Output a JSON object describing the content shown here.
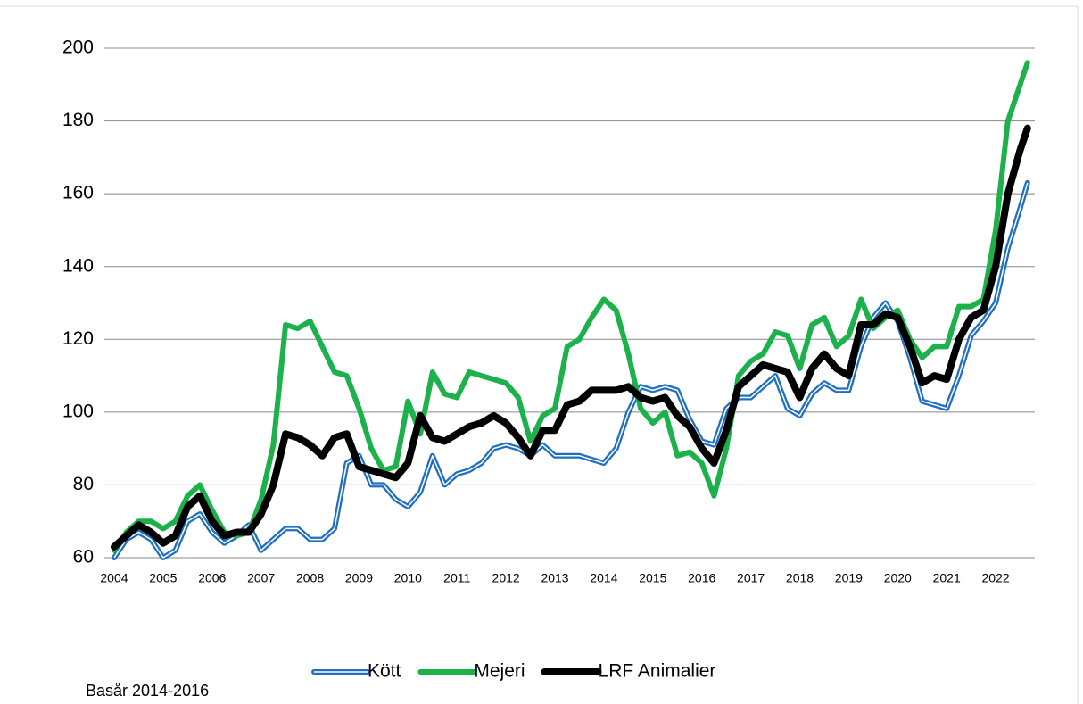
{
  "chart_data": {
    "type": "line",
    "annotation": "Basår 2014-2016",
    "x": [
      2004,
      2004.25,
      2004.5,
      2004.75,
      2005,
      2005.25,
      2005.5,
      2005.75,
      2006,
      2006.25,
      2006.5,
      2006.75,
      2007,
      2007.25,
      2007.5,
      2007.75,
      2008,
      2008.25,
      2008.5,
      2008.75,
      2009,
      2009.25,
      2009.5,
      2009.75,
      2010,
      2010.25,
      2010.5,
      2010.75,
      2011,
      2011.25,
      2011.5,
      2011.75,
      2012,
      2012.25,
      2012.5,
      2012.75,
      2013,
      2013.25,
      2013.5,
      2013.75,
      2014,
      2014.25,
      2014.5,
      2014.75,
      2015,
      2015.25,
      2015.5,
      2015.75,
      2016,
      2016.25,
      2016.5,
      2016.75,
      2017,
      2017.25,
      2017.5,
      2017.75,
      2018,
      2018.25,
      2018.5,
      2018.75,
      2019,
      2019.25,
      2019.5,
      2019.75,
      2020,
      2020.25,
      2020.5,
      2020.75,
      2021,
      2021.25,
      2021.5,
      2021.75,
      2022,
      2022.25,
      2022.5,
      2022.65
    ],
    "series": [
      {
        "name": "Kött",
        "color": "#1f6fc0",
        "values": [
          60,
          65,
          67,
          65,
          60,
          62,
          70,
          72,
          67,
          64,
          66,
          69,
          62,
          65,
          68,
          68,
          65,
          65,
          68,
          86,
          88,
          80,
          80,
          76,
          74,
          78,
          88,
          80,
          83,
          84,
          86,
          90,
          91,
          90,
          88,
          91,
          88,
          88,
          88,
          87,
          86,
          90,
          100,
          107,
          106,
          107,
          106,
          98,
          92,
          91,
          101,
          104,
          104,
          107,
          110,
          101,
          99,
          105,
          108,
          106,
          106,
          118,
          126,
          130,
          125,
          115,
          103,
          102,
          101,
          110,
          121,
          125,
          130,
          145,
          156,
          163
        ]
      },
      {
        "name": "Mejeri",
        "color": "#1db14b",
        "values": [
          62,
          67,
          70,
          70,
          68,
          70,
          77,
          80,
          73,
          67,
          66,
          67,
          76,
          91,
          124,
          123,
          125,
          118,
          111,
          110,
          101,
          90,
          84,
          85,
          103,
          94,
          111,
          105,
          104,
          111,
          110,
          109,
          108,
          104,
          92,
          99,
          101,
          118,
          120,
          126,
          131,
          128,
          116,
          101,
          97,
          100,
          88,
          89,
          86,
          77,
          90,
          110,
          114,
          116,
          122,
          121,
          112,
          124,
          126,
          118,
          121,
          131,
          123,
          126,
          128,
          120,
          115,
          118,
          118,
          129,
          129,
          131,
          150,
          180,
          190,
          196
        ]
      },
      {
        "name": "LRF Animalier",
        "color": "#000000",
        "values": [
          63,
          66,
          69,
          67,
          64,
          66,
          74,
          77,
          70,
          66,
          67,
          67,
          72,
          80,
          94,
          93,
          91,
          88,
          93,
          94,
          85,
          84,
          83,
          82,
          86,
          99,
          93,
          92,
          94,
          96,
          97,
          99,
          97,
          93,
          88,
          95,
          95,
          102,
          103,
          106,
          106,
          106,
          107,
          104,
          103,
          104,
          99,
          96,
          90,
          86,
          95,
          107,
          110,
          113,
          112,
          111,
          104,
          112,
          116,
          112,
          110,
          124,
          124,
          127,
          126,
          118,
          108,
          110,
          109,
          120,
          126,
          128,
          140,
          160,
          172,
          178
        ]
      }
    ],
    "xlim": [
      2003.8,
      2022.8
    ],
    "xticks": [
      2004,
      2005,
      2006,
      2007,
      2008,
      2009,
      2010,
      2011,
      2012,
      2013,
      2014,
      2015,
      2016,
      2017,
      2018,
      2019,
      2020,
      2021,
      2022
    ],
    "ylim": [
      60,
      200
    ],
    "yticks": [
      60,
      80,
      100,
      120,
      140,
      160,
      180,
      200
    ],
    "grid": true,
    "legend": "bottom"
  }
}
